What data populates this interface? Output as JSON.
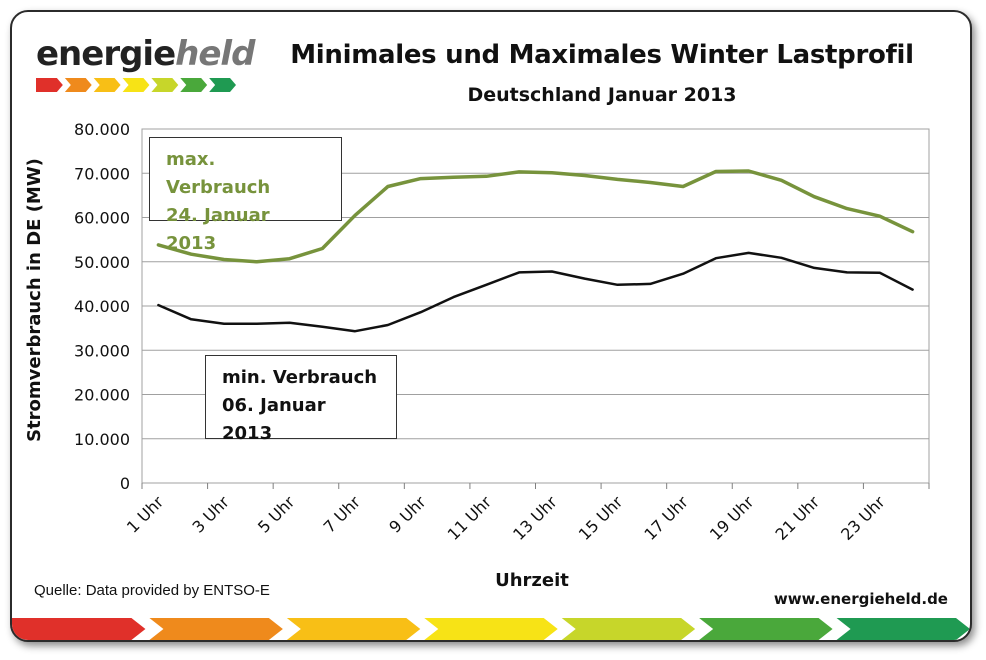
{
  "logo": {
    "part1": "energie",
    "part2": "held"
  },
  "chart_data": {
    "type": "line",
    "title": "Minimales und Maximales Winter Lastprofil",
    "subtitle": "Deutschland Januar 2013",
    "xlabel": "Uhrzeit",
    "ylabel": "Stromverbrauch in DE (MW)",
    "ylim": [
      0,
      80000
    ],
    "yticks": [
      "0",
      "10.000",
      "20.000",
      "30.000",
      "40.000",
      "50.000",
      "60.000",
      "70.000",
      "80.000"
    ],
    "ytick_values": [
      0,
      10000,
      20000,
      30000,
      40000,
      50000,
      60000,
      70000,
      80000
    ],
    "x": [
      1,
      2,
      3,
      4,
      5,
      6,
      7,
      8,
      9,
      10,
      11,
      12,
      13,
      14,
      15,
      16,
      17,
      18,
      19,
      20,
      21,
      22,
      23,
      24
    ],
    "xtick_labels": [
      "1 Uhr",
      "3 Uhr",
      "5 Uhr",
      "7 Uhr",
      "9 Uhr",
      "11 Uhr",
      "13 Uhr",
      "15 Uhr",
      "17 Uhr",
      "19 Uhr",
      "21 Uhr",
      "23 Uhr"
    ],
    "xtick_positions": [
      1,
      3,
      5,
      7,
      9,
      11,
      13,
      15,
      17,
      19,
      21,
      23
    ],
    "grid": "horizontal",
    "series": [
      {
        "key": "max",
        "color": "#77933c",
        "values": [
          53800,
          51700,
          50500,
          50000,
          50700,
          53000,
          60500,
          67000,
          68800,
          69100,
          69300,
          70300,
          70100,
          69500,
          68600,
          67900,
          67000,
          70400,
          70500,
          68400,
          64700,
          62000,
          60300,
          56800
        ]
      },
      {
        "key": "min",
        "color": "#111111",
        "values": [
          40200,
          37000,
          36000,
          36000,
          36200,
          35300,
          34300,
          35700,
          38600,
          42000,
          44800,
          47600,
          47800,
          46200,
          44800,
          45000,
          47300,
          50800,
          52000,
          50900,
          48600,
          47600,
          47500,
          43700
        ]
      }
    ],
    "annotations": [
      {
        "key": "max",
        "line1": "max. Verbrauch",
        "line2": "24. Januar 2013",
        "color": "#77933c"
      },
      {
        "key": "min",
        "line1": "min. Verbrauch",
        "line2": "06. Januar 2013",
        "color": "#111111"
      }
    ]
  },
  "footer": {
    "source": "Quelle:  Data provided by ENTSO-E",
    "url": "www.energieheld.de"
  },
  "bar_colors": [
    "#e0302a",
    "#ef8a1c",
    "#f8bf16",
    "#f7e316",
    "#c7d62a",
    "#4aa83b",
    "#1f9a52"
  ]
}
